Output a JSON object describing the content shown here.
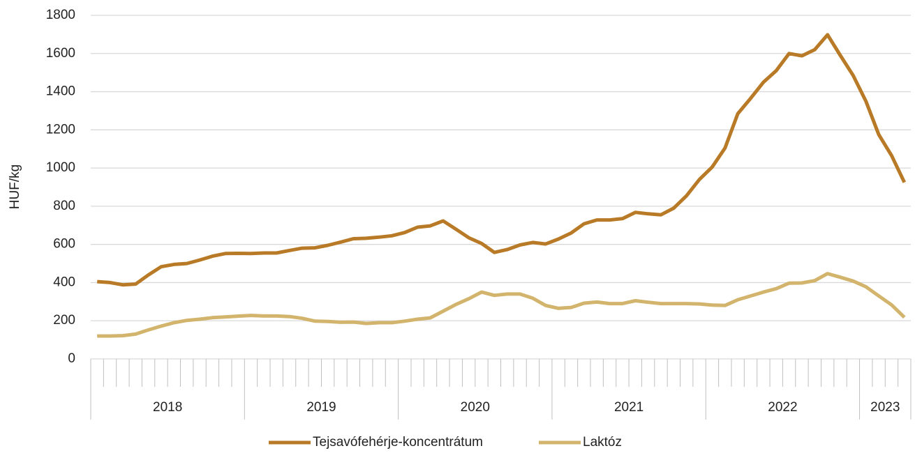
{
  "chart_data": {
    "type": "line",
    "y_label": "HUF/kg",
    "categories": [
      null,
      null,
      null,
      null,
      null,
      null,
      null,
      null,
      null,
      null,
      null,
      null,
      null,
      null,
      null,
      null,
      null,
      null,
      null,
      null,
      null,
      null,
      null,
      null,
      null,
      null,
      null,
      null,
      null,
      null,
      null,
      null,
      null,
      null,
      null,
      null,
      null,
      null,
      null,
      null,
      null,
      null,
      null,
      null,
      null,
      null,
      null,
      null,
      null,
      null,
      null,
      null,
      null,
      null,
      null,
      null,
      null,
      null,
      null,
      null,
      null,
      null,
      null,
      null
    ],
    "groups": [
      {
        "label": "2018",
        "count": 12
      },
      {
        "label": "2019",
        "count": 12
      },
      {
        "label": "2020",
        "count": 12
      },
      {
        "label": "2021",
        "count": 12
      },
      {
        "label": "2022",
        "count": 12
      },
      {
        "label": "2023",
        "count": 4
      }
    ],
    "series": [
      {
        "name": "Tejsavófehérje-koncentrátum",
        "color": "#b87a26",
        "values": [
          405,
          400,
          388,
          392,
          440,
          483,
          495,
          500,
          518,
          538,
          552,
          553,
          552,
          555,
          555,
          568,
          580,
          582,
          595,
          612,
          630,
          632,
          638,
          645,
          662,
          690,
          697,
          723,
          680,
          635,
          605,
          558,
          573,
          597,
          610,
          602,
          628,
          660,
          708,
          728,
          728,
          735,
          768,
          760,
          755,
          790,
          855,
          940,
          1005,
          1105,
          1285,
          1365,
          1450,
          1510,
          1600,
          1588,
          1620,
          1698,
          1590,
          1485,
          1350,
          1175,
          1065,
          925
        ]
      },
      {
        "name": "Laktóz",
        "color": "#d2b46c",
        "values": [
          120,
          120,
          122,
          130,
          152,
          172,
          190,
          202,
          208,
          216,
          220,
          224,
          228,
          225,
          225,
          222,
          213,
          198,
          196,
          192,
          193,
          186,
          190,
          190,
          198,
          208,
          215,
          250,
          285,
          315,
          350,
          333,
          340,
          340,
          318,
          280,
          265,
          270,
          292,
          298,
          290,
          290,
          305,
          297,
          290,
          290,
          290,
          288,
          282,
          280,
          310,
          330,
          350,
          368,
          397,
          398,
          410,
          447,
          428,
          408,
          378,
          330,
          283,
          218
        ]
      }
    ],
    "ylim": [
      0,
      1800
    ],
    "yticks": [
      0,
      200,
      400,
      600,
      800,
      1000,
      1200,
      1400,
      1600,
      1800
    ],
    "grid": true,
    "legend": "bottom"
  }
}
